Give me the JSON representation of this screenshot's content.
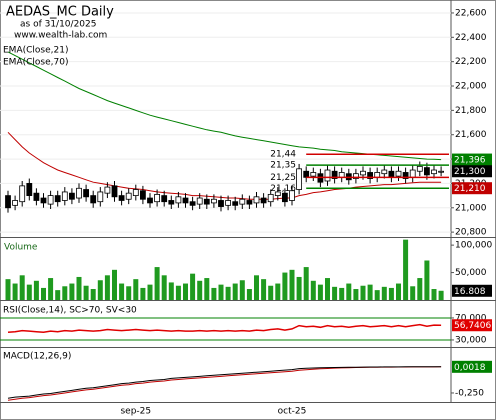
{
  "chart_data": [
    {
      "type": "candlestick",
      "title": "AEDAS_MC Daily",
      "subtitle": "as of 31/10/2025",
      "source": "www.wealth-lab.com",
      "categories": [
        null,
        null,
        null,
        null,
        null,
        null,
        null,
        null,
        null,
        null,
        null,
        null,
        null,
        null,
        null,
        null,
        null,
        null,
        "sep-25",
        null,
        null,
        null,
        null,
        null,
        null,
        null,
        null,
        null,
        null,
        null,
        null,
        null,
        null,
        null,
        null,
        null,
        null,
        null,
        null,
        null,
        "oct-25",
        null,
        null,
        null,
        null,
        null,
        null,
        null,
        null,
        null,
        null,
        null,
        null,
        null,
        null,
        null,
        null,
        null,
        null,
        null,
        null,
        null
      ],
      "open": [
        21.1,
        21.02,
        21.05,
        21.2,
        21.12,
        21.08,
        21.03,
        21.1,
        21.06,
        21.12,
        21.08,
        21.15,
        21.1,
        21.05,
        21.12,
        21.18,
        21.1,
        21.07,
        21.1,
        21.14,
        21.08,
        21.05,
        21.1,
        21.06,
        21.04,
        21.08,
        21.05,
        21.03,
        21.07,
        21.04,
        21.06,
        21.02,
        21.05,
        21.03,
        21.06,
        21.04,
        21.08,
        21.05,
        21.1,
        21.12,
        21.06,
        21.15,
        21.3,
        21.26,
        21.28,
        21.22,
        21.3,
        21.25,
        21.28,
        21.24,
        21.27,
        21.29,
        21.25,
        21.28,
        21.3,
        21.26,
        21.29,
        21.25,
        21.3,
        21.33,
        21.28,
        21.3
      ],
      "high": [
        21.14,
        21.1,
        21.22,
        21.24,
        21.16,
        21.12,
        21.14,
        21.14,
        21.17,
        21.16,
        21.2,
        21.19,
        21.14,
        21.17,
        21.21,
        21.22,
        21.14,
        21.16,
        21.19,
        21.18,
        21.12,
        21.15,
        21.14,
        21.1,
        21.13,
        21.12,
        21.09,
        21.12,
        21.11,
        21.11,
        21.1,
        21.1,
        21.09,
        21.11,
        21.1,
        21.13,
        21.12,
        21.15,
        21.17,
        21.16,
        21.18,
        21.36,
        21.34,
        21.33,
        21.32,
        21.35,
        21.34,
        21.33,
        21.32,
        21.32,
        21.34,
        21.33,
        21.33,
        21.35,
        21.34,
        21.34,
        21.33,
        21.35,
        21.38,
        21.37,
        21.35,
        21.34
      ],
      "low": [
        20.96,
        20.98,
        21.01,
        21.06,
        21.02,
        21.0,
        20.99,
        21.01,
        21.02,
        21.03,
        21.04,
        21.05,
        21.0,
        21.01,
        21.08,
        21.05,
        21.02,
        21.03,
        21.06,
        21.03,
        21.0,
        21.01,
        21.01,
        20.99,
        21.0,
        21.0,
        20.98,
        20.99,
        20.99,
        21.0,
        20.97,
        20.98,
        20.98,
        20.99,
        20.99,
        21.0,
        21.0,
        21.01,
        21.06,
        21.01,
        21.02,
        21.11,
        21.21,
        21.22,
        21.17,
        21.18,
        21.2,
        21.21,
        21.19,
        21.2,
        21.23,
        21.2,
        21.21,
        21.24,
        21.21,
        21.22,
        21.2,
        21.21,
        21.26,
        21.23,
        21.24,
        21.26
      ],
      "close": [
        21.0,
        21.06,
        21.18,
        21.1,
        21.06,
        21.04,
        21.1,
        21.05,
        21.13,
        21.07,
        21.16,
        21.09,
        21.04,
        21.13,
        21.17,
        21.09,
        21.06,
        21.12,
        21.15,
        21.07,
        21.04,
        21.11,
        21.05,
        21.03,
        21.09,
        21.04,
        21.02,
        21.08,
        21.03,
        21.07,
        21.01,
        21.06,
        21.02,
        21.07,
        21.03,
        21.09,
        21.04,
        21.11,
        21.13,
        21.05,
        21.14,
        21.32,
        21.25,
        21.29,
        21.21,
        21.31,
        21.24,
        21.29,
        21.23,
        21.28,
        21.3,
        21.24,
        21.29,
        21.31,
        21.25,
        21.3,
        21.24,
        21.31,
        21.34,
        21.27,
        21.31,
        21.3
      ],
      "last_label": "21,300",
      "color": "#000000",
      "series": [
        {
          "name": "EMA(Close,21)",
          "color": "#c00000",
          "last_label": "21,210",
          "values": [
            21.62,
            21.56,
            21.5,
            21.45,
            21.41,
            21.37,
            21.34,
            21.31,
            21.29,
            21.27,
            21.25,
            21.23,
            21.21,
            21.2,
            21.19,
            21.18,
            21.17,
            21.16,
            21.155,
            21.15,
            21.14,
            21.13,
            21.125,
            21.12,
            21.115,
            21.11,
            21.1,
            21.1,
            21.095,
            21.09,
            21.085,
            21.08,
            21.08,
            21.075,
            21.07,
            21.07,
            21.07,
            21.07,
            21.075,
            21.08,
            21.08,
            21.1,
            21.11,
            21.125,
            21.13,
            21.14,
            21.15,
            21.155,
            21.16,
            21.17,
            21.175,
            21.18,
            21.185,
            21.19,
            21.19,
            21.195,
            21.2,
            21.205,
            21.21,
            21.21,
            21.21,
            21.21
          ]
        },
        {
          "name": "EMA(Close,70)",
          "color": "#008000",
          "last_label": "21,396",
          "values": [
            22.28,
            22.25,
            22.22,
            22.19,
            22.16,
            22.13,
            22.1,
            22.07,
            22.04,
            22.01,
            21.98,
            21.955,
            21.93,
            21.905,
            21.88,
            21.86,
            21.84,
            21.82,
            21.8,
            21.78,
            21.76,
            21.745,
            21.73,
            21.715,
            21.7,
            21.685,
            21.67,
            21.655,
            21.64,
            21.63,
            21.62,
            21.605,
            21.59,
            21.58,
            21.57,
            21.56,
            21.55,
            21.54,
            21.53,
            21.52,
            21.51,
            21.5,
            21.495,
            21.49,
            21.48,
            21.475,
            21.47,
            21.46,
            21.455,
            21.45,
            21.445,
            21.44,
            21.435,
            21.43,
            21.425,
            21.42,
            21.415,
            21.41,
            21.405,
            21.4,
            21.398,
            21.396
          ]
        }
      ],
      "levels": [
        {
          "value": 21.44,
          "label": "21,44",
          "color": "#d00000"
        },
        {
          "value": 21.35,
          "label": "21,35",
          "color": "#008000"
        },
        {
          "value": 21.25,
          "label": "21,25",
          "color": "#d00000"
        },
        {
          "value": 21.16,
          "label": "21,16",
          "color": "#008000"
        }
      ],
      "ylim": [
        20.76,
        22.69
      ],
      "yticks": [
        {
          "value": 22.6,
          "label": "22,600"
        },
        {
          "value": 22.4,
          "label": "22,400"
        },
        {
          "value": 22.2,
          "label": "22,200"
        },
        {
          "value": 22.0,
          "label": "22,000"
        },
        {
          "value": 21.8,
          "label": "21,800"
        },
        {
          "value": 21.6,
          "label": "21,600"
        },
        {
          "value": 21.4,
          "label": "21,400"
        },
        {
          "value": 21.2,
          "label": "21,200"
        },
        {
          "value": 21.0,
          "label": "21,000"
        },
        {
          "value": 20.8,
          "label": "20,800"
        }
      ],
      "grid": true
    },
    {
      "type": "bar",
      "title": "Volume",
      "color": "#1f9a1f",
      "last_label": "16.808",
      "values": [
        38000,
        30000,
        45000,
        28000,
        35000,
        22000,
        40000,
        18000,
        25000,
        30000,
        42000,
        26000,
        20000,
        36000,
        45000,
        55000,
        30000,
        25000,
        38000,
        22000,
        28000,
        60000,
        45000,
        32000,
        26000,
        30000,
        48000,
        35000,
        40000,
        22000,
        28000,
        24000,
        30000,
        36000,
        20000,
        45000,
        38000,
        26000,
        30000,
        50000,
        55000,
        42000,
        60000,
        35000,
        28000,
        40000,
        24000,
        22000,
        30000,
        20000,
        26000,
        28000,
        18000,
        24000,
        22000,
        30000,
        110000,
        25000,
        40000,
        72000,
        20000,
        16808
      ],
      "ylim": [
        0,
        113000
      ],
      "yticks": [
        {
          "value": 100000,
          "label": "100,000"
        },
        {
          "value": 50000,
          "label": "50,000"
        }
      ]
    },
    {
      "type": "line",
      "title": "RSI(Close,14), SC>70, SV<30",
      "threshold_color": "#008000",
      "series": [
        {
          "name": "RSI",
          "color": "#e00000",
          "last_label": "56,7406",
          "values": [
            44,
            45,
            47,
            46,
            45,
            44,
            46,
            45,
            47,
            46,
            48,
            47,
            46,
            47,
            49,
            48,
            47,
            48,
            49,
            48,
            47,
            48,
            47,
            46,
            47,
            46,
            46,
            47,
            46,
            47,
            46,
            47,
            46,
            47,
            46,
            48,
            47,
            49,
            50,
            48,
            50,
            56,
            54,
            55,
            53,
            56,
            54,
            55,
            53,
            55,
            56,
            54,
            55,
            56,
            54,
            56,
            54,
            56,
            58,
            55,
            57,
            56.7406
          ]
        }
      ],
      "ylim": [
        19,
        99
      ],
      "yticks": [
        {
          "value": 70,
          "label": "70,000"
        },
        {
          "value": 30,
          "label": "30,000"
        }
      ]
    },
    {
      "type": "line",
      "title": "MACD(12,26,9)",
      "series": [
        {
          "name": "MACD",
          "color": "#000000",
          "last_label": "0,0018",
          "label_color": "#008000",
          "values": [
            -0.3,
            -0.29,
            -0.285,
            -0.28,
            -0.27,
            -0.26,
            -0.255,
            -0.245,
            -0.235,
            -0.225,
            -0.215,
            -0.205,
            -0.2,
            -0.19,
            -0.18,
            -0.17,
            -0.16,
            -0.155,
            -0.145,
            -0.14,
            -0.13,
            -0.125,
            -0.12,
            -0.11,
            -0.105,
            -0.1,
            -0.095,
            -0.09,
            -0.085,
            -0.08,
            -0.075,
            -0.07,
            -0.065,
            -0.06,
            -0.055,
            -0.05,
            -0.045,
            -0.04,
            -0.035,
            -0.03,
            -0.025,
            -0.015,
            -0.012,
            -0.01,
            -0.008,
            -0.006,
            -0.005,
            -0.004,
            -0.003,
            -0.002,
            -0.001,
            0,
            0.0005,
            0.001,
            0.0012,
            0.0014,
            0.0015,
            0.0016,
            0.0017,
            0.0017,
            0.0018,
            0.0018
          ]
        },
        {
          "name": "Signal",
          "color": "#c00000",
          "values": [
            -0.32,
            -0.31,
            -0.3,
            -0.295,
            -0.285,
            -0.275,
            -0.27,
            -0.26,
            -0.25,
            -0.24,
            -0.23,
            -0.22,
            -0.215,
            -0.205,
            -0.195,
            -0.185,
            -0.175,
            -0.17,
            -0.16,
            -0.155,
            -0.145,
            -0.14,
            -0.135,
            -0.125,
            -0.12,
            -0.115,
            -0.11,
            -0.105,
            -0.1,
            -0.095,
            -0.09,
            -0.085,
            -0.08,
            -0.075,
            -0.07,
            -0.065,
            -0.06,
            -0.055,
            -0.05,
            -0.045,
            -0.04,
            -0.032,
            -0.026,
            -0.021,
            -0.017,
            -0.014,
            -0.011,
            -0.009,
            -0.007,
            -0.005,
            -0.004,
            -0.003,
            -0.002,
            -0.001,
            -0.0005,
            0,
            0.0004,
            0.0008,
            0.001,
            0.0012,
            0.0014,
            0.0015
          ]
        }
      ],
      "ylim": [
        -0.337,
        0.183
      ],
      "yticks": [
        {
          "value": -0.25,
          "label": "-0,250"
        }
      ]
    }
  ]
}
